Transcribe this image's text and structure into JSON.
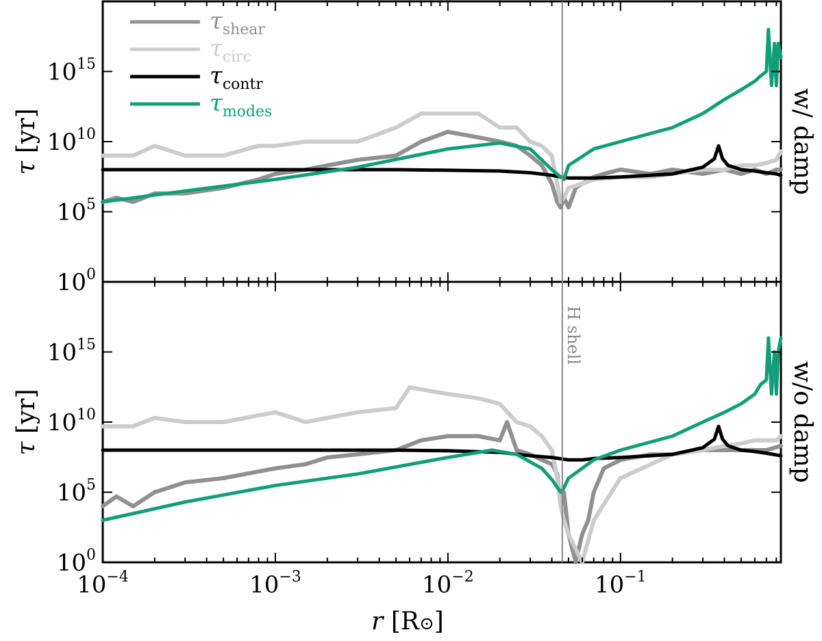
{
  "chart_data": [
    {
      "panel": "top",
      "type": "line",
      "xscale": "log",
      "yscale": "log",
      "xlim": [
        0.0001,
        0.85
      ],
      "ylim": [
        1,
        1e+20
      ],
      "ylabel": "τ [yr]",
      "side_label": "w/ damp",
      "series": [
        {
          "name": "τ_shear",
          "label_main": "τ",
          "label_sub": "shear",
          "color": "#909090",
          "width": 6,
          "x": [
            0.0001,
            0.00012,
            0.00015,
            0.0002,
            0.0003,
            0.0005,
            0.0008,
            0.001,
            0.0015,
            0.002,
            0.003,
            0.005,
            0.007,
            0.01,
            0.015,
            0.02,
            0.025,
            0.03,
            0.035,
            0.04,
            0.043,
            0.045,
            0.047,
            0.05,
            0.055,
            0.06,
            0.07,
            0.08,
            0.1,
            0.15,
            0.2,
            0.3,
            0.4,
            0.5,
            0.6,
            0.7,
            0.8,
            0.85
          ],
          "y": [
            500000.0,
            1000000.0,
            500000.0,
            2000000.0,
            2000000.0,
            5000000.0,
            20000000.0,
            50000000.0,
            100000000.0,
            200000000.0,
            500000000.0,
            1000000000.0,
            10000000000.0,
            50000000000.0,
            20000000000.0,
            10000000000.0,
            5000000000.0,
            1000000000.0,
            200000000.0,
            10000000.0,
            500000.0,
            200000.0,
            1000000.0,
            200000.0,
            5000000.0,
            10000000.0,
            30000000.0,
            50000000.0,
            100000000.0,
            50000000.0,
            100000000.0,
            50000000.0,
            100000000.0,
            50000000.0,
            100000000.0,
            50000000.0,
            100000000.0,
            100000000.0
          ]
        },
        {
          "name": "τ_circ",
          "label_main": "τ",
          "label_sub": "circ",
          "color": "#cccccc",
          "width": 6,
          "x": [
            0.0001,
            0.00015,
            0.0002,
            0.0003,
            0.0005,
            0.0008,
            0.001,
            0.0015,
            0.002,
            0.003,
            0.005,
            0.007,
            0.01,
            0.015,
            0.02,
            0.025,
            0.03,
            0.035,
            0.04,
            0.043,
            0.045,
            0.047,
            0.05,
            0.06,
            0.07,
            0.1,
            0.15,
            0.2,
            0.3,
            0.4,
            0.5,
            0.6,
            0.7,
            0.8,
            0.85
          ],
          "y": [
            1000000000.0,
            1000000000.0,
            5000000000.0,
            1000000000.0,
            1000000000.0,
            5000000000.0,
            5000000000.0,
            10000000000.0,
            10000000000.0,
            10000000000.0,
            100000000000.0,
            1000000000000.0,
            1000000000000.0,
            1000000000000.0,
            100000000000.0,
            100000000000.0,
            10000000000.0,
            5000000000.0,
            1000000000.0,
            10000000.0,
            500000.0,
            1000000.0,
            5000000.0,
            10000000.0,
            20000000.0,
            30000000.0,
            30000000.0,
            50000000.0,
            100000000.0,
            100000000.0,
            200000000.0,
            200000000.0,
            300000000.0,
            500000000.0,
            2000000000.0
          ]
        },
        {
          "name": "τ_contr",
          "label_main": "τ",
          "label_sub": "contr",
          "color": "#000000",
          "width": 5,
          "x": [
            0.0001,
            0.001,
            0.005,
            0.01,
            0.02,
            0.03,
            0.04,
            0.045,
            0.05,
            0.07,
            0.1,
            0.2,
            0.3,
            0.35,
            0.37,
            0.39,
            0.42,
            0.5,
            0.6,
            0.7,
            0.8,
            0.85
          ],
          "y": [
            100000000.0,
            100000000.0,
            100000000.0,
            90000000.0,
            80000000.0,
            60000000.0,
            40000000.0,
            30000000.0,
            25000000.0,
            25000000.0,
            30000000.0,
            50000000.0,
            150000000.0,
            600000000.0,
            5000000000.0,
            600000000.0,
            200000000.0,
            100000000.0,
            80000000.0,
            60000000.0,
            50000000.0,
            40000000.0
          ]
        },
        {
          "name": "τ_modes",
          "label_main": "τ",
          "label_sub": "modes",
          "color": "#109f79",
          "width": 5,
          "x": [
            0.0001,
            0.0003,
            0.001,
            0.003,
            0.01,
            0.02,
            0.03,
            0.04,
            0.045,
            0.047,
            0.05,
            0.07,
            0.1,
            0.2,
            0.3,
            0.4,
            0.5,
            0.6,
            0.65,
            0.7,
            0.72,
            0.75,
            0.78,
            0.8,
            0.82,
            0.85
          ],
          "y": [
            500000.0,
            3000000.0,
            20000000.0,
            150000000.0,
            3000000000.0,
            8000000000.0,
            3000000000.0,
            100000000.0,
            30000000.0,
            20000000.0,
            200000000.0,
            3000000000.0,
            10000000000.0,
            100000000000.0,
            1000000000000.0,
            10000000000000.0,
            50000000000000.0,
            200000000000000.0,
            500000000000000.0,
            1000000000000000.0,
            1e+18,
            100000000000000.0,
            1e+17,
            100000000000000.0,
            1e+17,
            1e+16
          ]
        }
      ]
    },
    {
      "panel": "bottom",
      "type": "line",
      "xscale": "log",
      "yscale": "log",
      "xlim": [
        0.0001,
        0.85
      ],
      "ylim": [
        1,
        1e+20
      ],
      "xlabel": "r [R⊙]",
      "ylabel": "τ [yr]",
      "side_label": "w/o damp",
      "annotation": {
        "text": "H shell",
        "x": 0.046
      },
      "series": [
        {
          "name": "τ_shear",
          "color": "#909090",
          "width": 6,
          "x": [
            0.0001,
            0.00012,
            0.00015,
            0.0002,
            0.0003,
            0.0005,
            0.0008,
            0.001,
            0.0015,
            0.002,
            0.003,
            0.005,
            0.007,
            0.01,
            0.015,
            0.02,
            0.022,
            0.025,
            0.03,
            0.035,
            0.04,
            0.043,
            0.045,
            0.047,
            0.05,
            0.055,
            0.06,
            0.065,
            0.07,
            0.08,
            0.1,
            0.15,
            0.2,
            0.3,
            0.5,
            0.7,
            0.85
          ],
          "y": [
            10000.0,
            50000.0,
            10000.0,
            100000.0,
            500000.0,
            1000000.0,
            3000000.0,
            5000000.0,
            10000000.0,
            30000000.0,
            50000000.0,
            100000000.0,
            500000000.0,
            1000000000.0,
            1000000000.0,
            500000000.0,
            10000000000.0,
            100000000.0,
            50000000.0,
            20000000.0,
            10000000.0,
            2000000.0,
            10000.0,
            100000.0,
            100.0,
            1.0,
            100.0,
            1000.0,
            100000.0,
            5000000.0,
            20000000.0,
            50000000.0,
            50000000.0,
            100000000.0,
            100000000.0,
            100000000.0,
            200000000.0
          ]
        },
        {
          "name": "τ_circ",
          "color": "#cccccc",
          "width": 6,
          "x": [
            0.0001,
            0.00015,
            0.0002,
            0.0003,
            0.0005,
            0.0008,
            0.001,
            0.0015,
            0.002,
            0.003,
            0.005,
            0.006,
            0.01,
            0.015,
            0.02,
            0.025,
            0.03,
            0.035,
            0.04,
            0.043,
            0.045,
            0.047,
            0.05,
            0.06,
            0.07,
            0.1,
            0.2,
            0.3,
            0.4,
            0.5,
            0.6,
            0.7,
            0.8,
            0.85
          ],
          "y": [
            5000000000.0,
            5000000000.0,
            20000000000.0,
            10000000000.0,
            10000000000.0,
            30000000000.0,
            50000000000.0,
            10000000000.0,
            20000000000.0,
            50000000000.0,
            100000000000.0,
            3000000000000.0,
            1000000000000.0,
            500000000000.0,
            200000000000.0,
            10000000000.0,
            5000000000.0,
            1000000000.0,
            100000000.0,
            1000000.0,
            10000.0,
            1000.0,
            100.0,
            1.0,
            1000.0,
            1000000.0,
            50000000.0,
            100000000.0,
            200000000.0,
            300000000.0,
            500000000.0,
            500000000.0,
            500000000.0,
            1000000000.0
          ]
        },
        {
          "name": "τ_contr",
          "color": "#000000",
          "width": 5,
          "x": [
            0.0001,
            0.001,
            0.005,
            0.01,
            0.02,
            0.03,
            0.04,
            0.05,
            0.06,
            0.07,
            0.1,
            0.2,
            0.3,
            0.35,
            0.37,
            0.39,
            0.42,
            0.5,
            0.6,
            0.7,
            0.85
          ],
          "y": [
            100000000.0,
            100000000.0,
            100000000.0,
            90000000.0,
            70000000.0,
            40000000.0,
            30000000.0,
            20000000.0,
            20000000.0,
            25000000.0,
            30000000.0,
            50000000.0,
            150000000.0,
            600000000.0,
            5000000000.0,
            600000000.0,
            200000000.0,
            100000000.0,
            80000000.0,
            60000000.0,
            40000000.0
          ]
        },
        {
          "name": "τ_modes",
          "color": "#109f79",
          "width": 5,
          "x": [
            0.0001,
            0.0003,
            0.001,
            0.003,
            0.01,
            0.018,
            0.025,
            0.035,
            0.04,
            0.045,
            0.047,
            0.05,
            0.07,
            0.1,
            0.2,
            0.3,
            0.4,
            0.5,
            0.6,
            0.65,
            0.7,
            0.72,
            0.75,
            0.78,
            0.8,
            0.82,
            0.85
          ],
          "y": [
            1000.0,
            20000.0,
            300000.0,
            2000000.0,
            30000000.0,
            100000000.0,
            50000000.0,
            5000000.0,
            800000.0,
            100000.0,
            200000.0,
            1000000.0,
            20000000.0,
            100000000.0,
            1000000000.0,
            10000000000.0,
            50000000000.0,
            200000000000.0,
            1000000000000.0,
            5000000000000.0,
            10000000000000.0,
            1e+16,
            1000000000000.0,
            1000000000000000.0,
            1000000000000.0,
            1000000000000000.0,
            1e+16
          ]
        }
      ]
    }
  ],
  "axes": {
    "x_ticks": [
      {
        "value": 0.0001,
        "base": "10",
        "exp": "−4"
      },
      {
        "value": 0.001,
        "base": "10",
        "exp": "−3"
      },
      {
        "value": 0.01,
        "base": "10",
        "exp": "−2"
      },
      {
        "value": 0.1,
        "base": "10",
        "exp": "−1"
      }
    ],
    "y_ticks": [
      {
        "value": 1,
        "base": "10",
        "exp": "0"
      },
      {
        "value": 100000.0,
        "base": "10",
        "exp": "5"
      },
      {
        "value": 10000000000.0,
        "base": "10",
        "exp": "10"
      },
      {
        "value": 1000000000000000.0,
        "base": "10",
        "exp": "15"
      }
    ],
    "top_ylabel_main": "τ",
    "top_ylabel_unit": "[yr]",
    "bottom_ylabel_main": "τ",
    "bottom_ylabel_unit": "[yr]",
    "xlabel_main": "r",
    "xlabel_unit": "[R",
    "xlabel_sun": "⊙",
    "xlabel_close": "]",
    "top_side": "w/ damp",
    "bottom_side": "w/o damp",
    "h_shell": "H shell"
  },
  "legend": [
    {
      "main": "τ",
      "sub": "shear",
      "color": "#909090"
    },
    {
      "main": "τ",
      "sub": "circ",
      "color": "#cccccc"
    },
    {
      "main": "τ",
      "sub": "contr",
      "color": "#000000"
    },
    {
      "main": "τ",
      "sub": "modes",
      "color": "#109f79"
    }
  ]
}
